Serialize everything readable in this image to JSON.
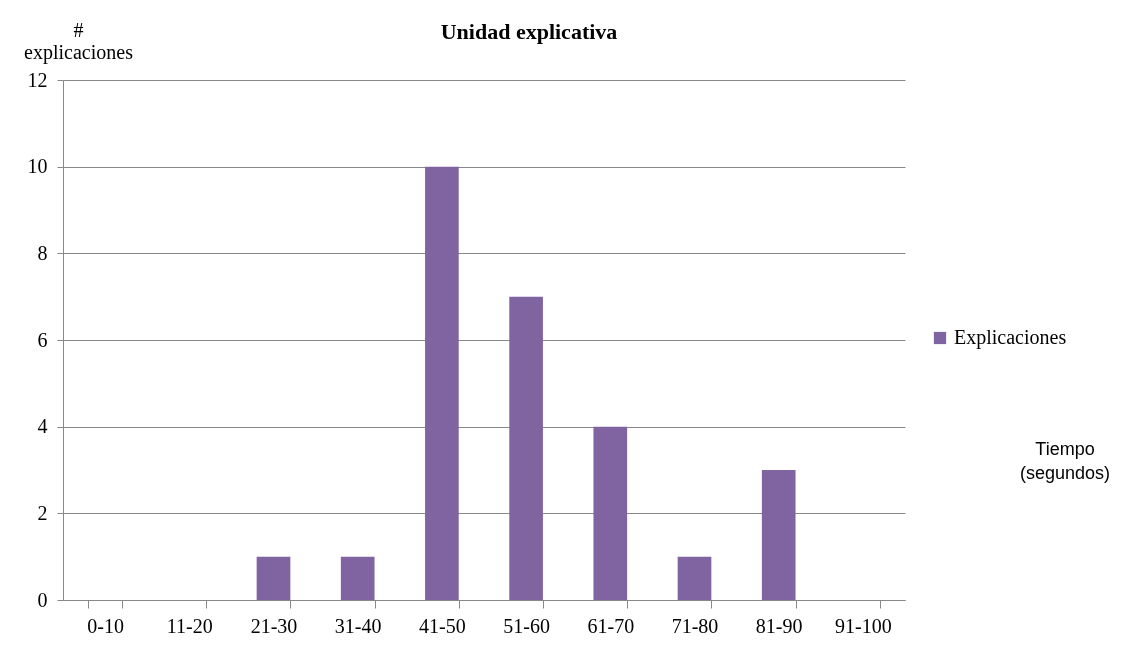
{
  "chart_data": {
    "type": "bar",
    "title": "Unidad explicativa",
    "ylabel": "# explicaciones",
    "annotations": [
      "Tiempo (segundos)"
    ],
    "categories": [
      "0-10",
      "11-20",
      "21-30",
      "31-40",
      "41-50",
      "51-60",
      "61-70",
      "71-80",
      "81-90",
      "91-100"
    ],
    "series": [
      {
        "name": "Explicaciones",
        "color": "#8064a2",
        "values": [
          0,
          0,
          1,
          1,
          10,
          7,
          4,
          1,
          3,
          0
        ]
      }
    ],
    "ylim": [
      0,
      12
    ],
    "yticks": [
      0,
      2,
      4,
      6,
      8,
      10,
      12
    ],
    "grid": "y",
    "legend": "right"
  }
}
